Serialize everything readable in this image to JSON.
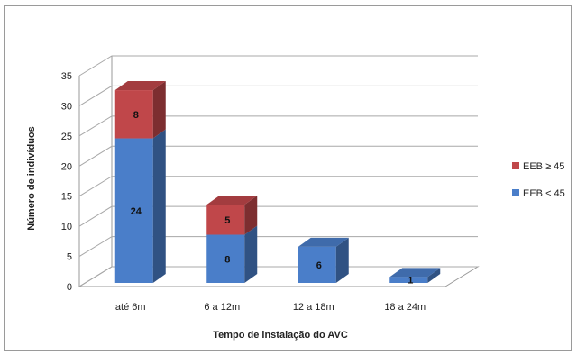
{
  "chart_data": {
    "type": "bar",
    "stacked": true,
    "three_d": true,
    "categories": [
      "até 6m",
      "6 a 12m",
      "12 a 18m",
      "18 a 24m"
    ],
    "series": [
      {
        "name": "EEB < 45",
        "values": [
          24,
          8,
          6,
          1
        ],
        "color": "#4a7ec9"
      },
      {
        "name": "EEB ≥ 45",
        "values": [
          8,
          5,
          0,
          0
        ],
        "color": "#c0474a"
      }
    ],
    "xlabel": "Tempo de instalação do AVC",
    "ylabel": "Número de indivíduos",
    "ylim": [
      0,
      35
    ],
    "yticks": [
      0,
      5,
      10,
      15,
      20,
      25,
      30,
      35
    ],
    "grid": true,
    "legend_position": "right"
  }
}
